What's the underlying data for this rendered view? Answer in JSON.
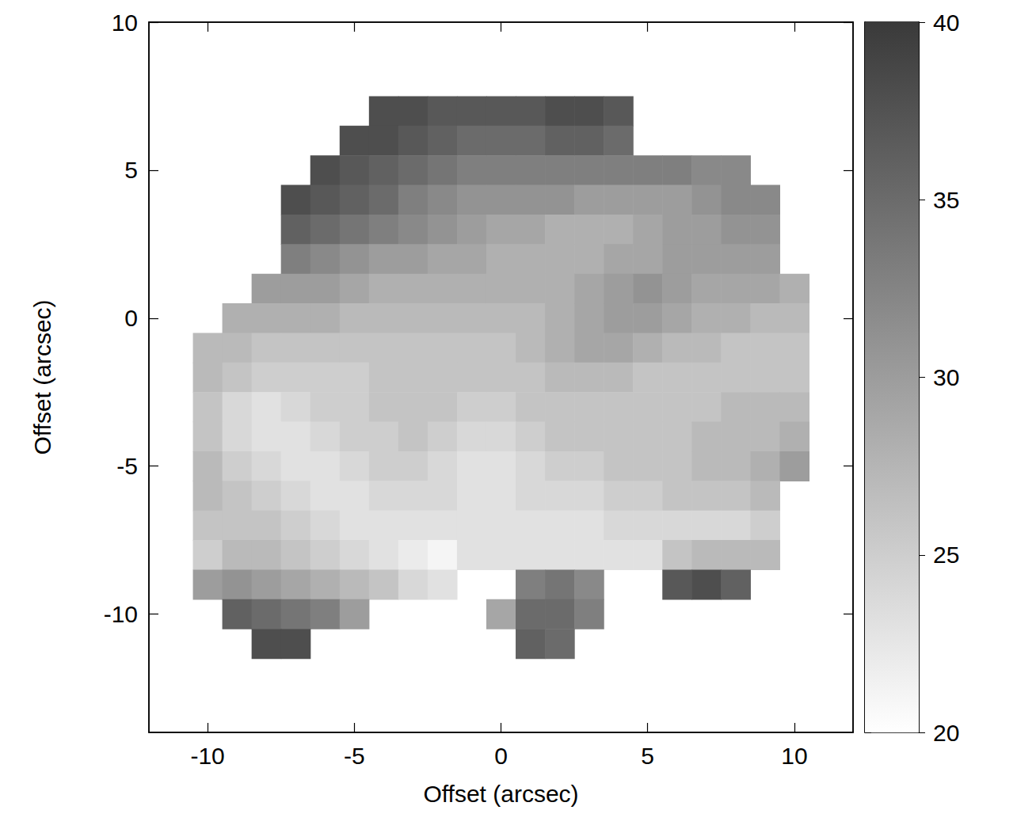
{
  "chart_data": {
    "type": "heatmap",
    "xlabel": "Offset (arcsec)",
    "ylabel": "Offset (arcsec)",
    "x": [
      -10,
      -9,
      -8,
      -7,
      -6,
      -5,
      -4,
      -3,
      -2,
      -1,
      0,
      1,
      2,
      3,
      4,
      5,
      6,
      7,
      8,
      9,
      10
    ],
    "y": [
      7,
      6,
      5,
      4,
      3,
      2,
      1,
      0,
      -1,
      -2,
      -3,
      -4,
      -5,
      -6,
      -7,
      -8,
      -9,
      -10,
      -11
    ],
    "cells": [
      [
        null,
        null,
        null,
        null,
        null,
        null,
        38,
        38,
        37,
        37,
        37,
        37,
        38,
        38,
        37,
        null,
        null,
        null,
        null,
        null,
        null
      ],
      [
        null,
        null,
        null,
        null,
        null,
        38,
        38,
        37,
        36,
        35,
        35,
        35,
        36,
        36,
        35,
        null,
        null,
        null,
        null,
        null,
        null
      ],
      [
        null,
        null,
        null,
        null,
        38,
        37,
        36,
        35,
        34,
        33,
        33,
        33,
        33,
        33,
        33,
        33,
        33,
        32,
        32,
        null,
        null
      ],
      [
        null,
        null,
        null,
        38,
        37,
        36,
        35,
        33,
        32,
        31,
        31,
        31,
        31,
        30,
        30,
        30,
        30,
        31,
        32,
        32,
        null
      ],
      [
        null,
        null,
        null,
        36,
        35,
        34,
        33,
        32,
        31,
        30,
        29,
        29,
        28,
        28,
        28,
        29,
        30,
        30,
        31,
        31,
        null
      ],
      [
        null,
        null,
        null,
        33,
        32,
        31,
        30,
        30,
        29,
        29,
        28,
        28,
        28,
        28,
        29,
        29,
        30,
        30,
        30,
        30,
        null
      ],
      [
        null,
        null,
        30,
        30,
        30,
        29,
        28,
        28,
        28,
        28,
        28,
        28,
        28,
        29,
        30,
        31,
        30,
        29,
        29,
        29,
        28
      ],
      [
        null,
        28,
        28,
        28,
        28,
        27,
        27,
        27,
        27,
        27,
        27,
        27,
        28,
        29,
        30,
        30,
        29,
        28,
        28,
        27,
        27
      ],
      [
        27,
        27,
        26,
        26,
        26,
        26,
        26,
        26,
        26,
        26,
        26,
        27,
        28,
        29,
        29,
        28,
        27,
        27,
        26,
        26,
        26
      ],
      [
        27,
        26,
        25,
        25,
        25,
        25,
        26,
        26,
        26,
        26,
        26,
        26,
        27,
        27,
        27,
        26,
        26,
        26,
        26,
        26,
        26
      ],
      [
        26,
        24,
        23,
        24,
        25,
        25,
        26,
        26,
        26,
        25,
        25,
        26,
        26,
        26,
        26,
        26,
        26,
        26,
        27,
        27,
        27
      ],
      [
        26,
        24,
        23,
        23,
        24,
        25,
        25,
        26,
        25,
        24,
        24,
        25,
        26,
        26,
        26,
        26,
        26,
        27,
        27,
        27,
        28
      ],
      [
        27,
        25,
        24,
        23,
        23,
        24,
        25,
        25,
        24,
        23,
        23,
        24,
        25,
        25,
        26,
        26,
        26,
        27,
        27,
        28,
        30
      ],
      [
        27,
        26,
        25,
        24,
        23,
        23,
        24,
        24,
        24,
        23,
        23,
        24,
        24,
        24,
        25,
        25,
        26,
        26,
        26,
        27,
        null
      ],
      [
        26,
        26,
        26,
        25,
        24,
        23,
        23,
        23,
        23,
        23,
        23,
        23,
        23,
        23,
        24,
        24,
        24,
        24,
        24,
        25,
        null
      ],
      [
        25,
        27,
        27,
        26,
        25,
        24,
        23,
        22,
        21,
        23,
        23,
        23,
        23,
        23,
        23,
        23,
        26,
        27,
        27,
        27,
        null
      ],
      [
        30,
        31,
        30,
        29,
        28,
        27,
        26,
        24,
        23,
        null,
        null,
        33,
        34,
        32,
        null,
        null,
        37,
        38,
        36,
        null,
        null
      ],
      [
        null,
        36,
        35,
        34,
        33,
        30,
        null,
        null,
        null,
        null,
        29,
        35,
        35,
        33,
        null,
        null,
        null,
        null,
        null,
        null,
        null
      ],
      [
        null,
        null,
        38,
        38,
        null,
        null,
        null,
        null,
        null,
        null,
        null,
        36,
        35,
        null,
        null,
        null,
        null,
        null,
        null,
        null,
        null
      ]
    ],
    "xlim": [
      -12,
      12
    ],
    "ylim": [
      -14,
      10
    ],
    "xticks": [
      -10,
      -5,
      0,
      5,
      10
    ],
    "yticks": [
      -10,
      -5,
      0,
      5,
      10
    ],
    "colorbar_range": [
      20,
      40
    ],
    "colorbar_ticks": [
      20,
      25,
      30,
      35,
      40
    ]
  }
}
